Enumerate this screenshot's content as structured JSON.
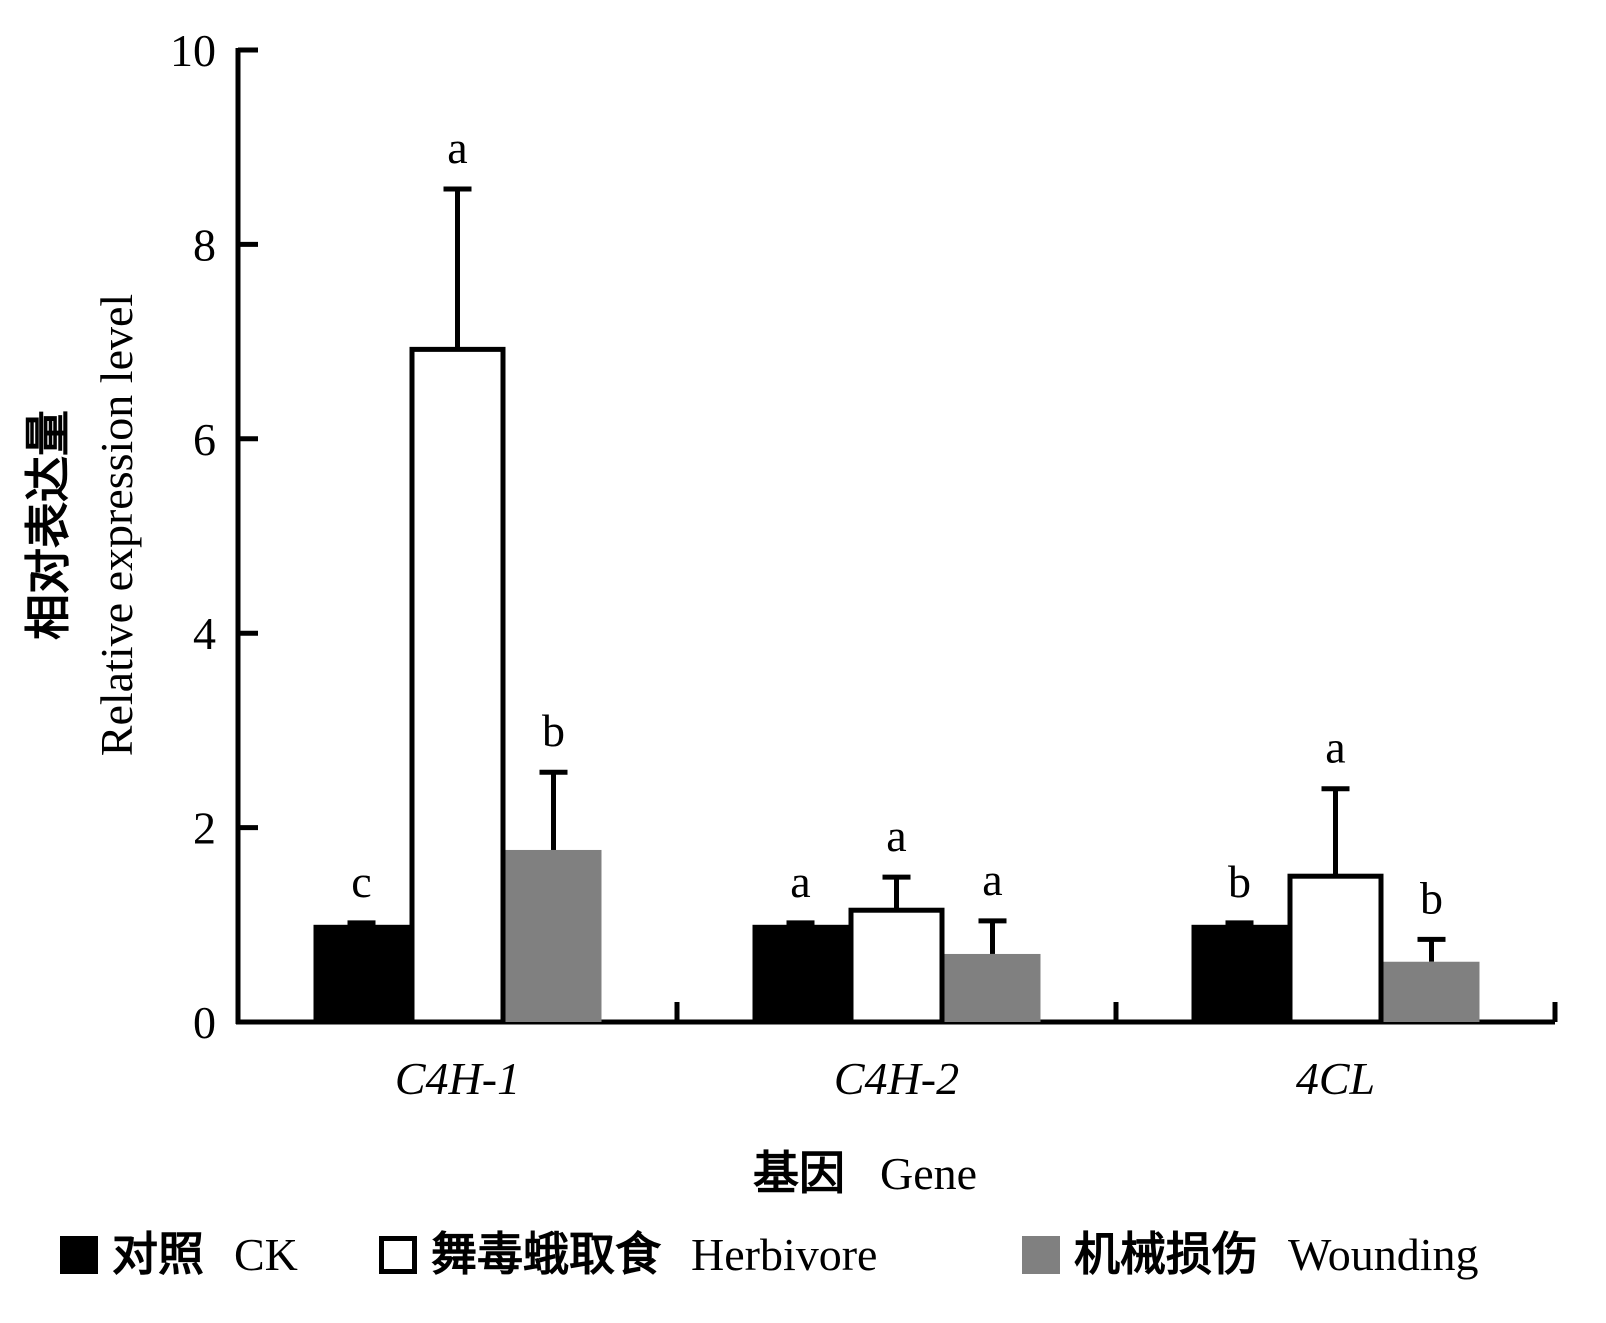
{
  "chart_data": {
    "type": "bar",
    "ylabel_cn": "相对表达量",
    "ylabel_en": "Relative expression level",
    "xlabel_cn": "基因",
    "xlabel_en": "Gene",
    "ylim": [
      0,
      10
    ],
    "yticks": [
      "0",
      "2",
      "4",
      "6",
      "8",
      "10"
    ],
    "categories": [
      "C4H-1",
      "C4H-2",
      "4CL"
    ],
    "series": [
      {
        "name_cn": "对照",
        "name_en": "CK",
        "color": "#000000",
        "fill": "solid",
        "values": [
          1.0,
          1.0,
          1.0
        ],
        "errors": [
          0.02,
          0.02,
          0.02
        ],
        "letters": [
          "c",
          "a",
          "b"
        ]
      },
      {
        "name_cn": "舞毒蛾取食",
        "name_en": "Herbivore",
        "color": "#ffffff",
        "fill": "outline",
        "values": [
          6.92,
          1.15,
          1.5
        ],
        "errors": [
          1.65,
          0.34,
          0.9
        ],
        "letters": [
          "a",
          "a",
          "a"
        ]
      },
      {
        "name_cn": "机械损伤",
        "name_en": "Wounding",
        "color": "#808080",
        "fill": "solid",
        "values": [
          1.77,
          0.7,
          0.62
        ],
        "errors": [
          0.8,
          0.34,
          0.23
        ],
        "letters": [
          "b",
          "a",
          "b"
        ]
      }
    ],
    "legend_position": "bottom",
    "grid": false
  }
}
